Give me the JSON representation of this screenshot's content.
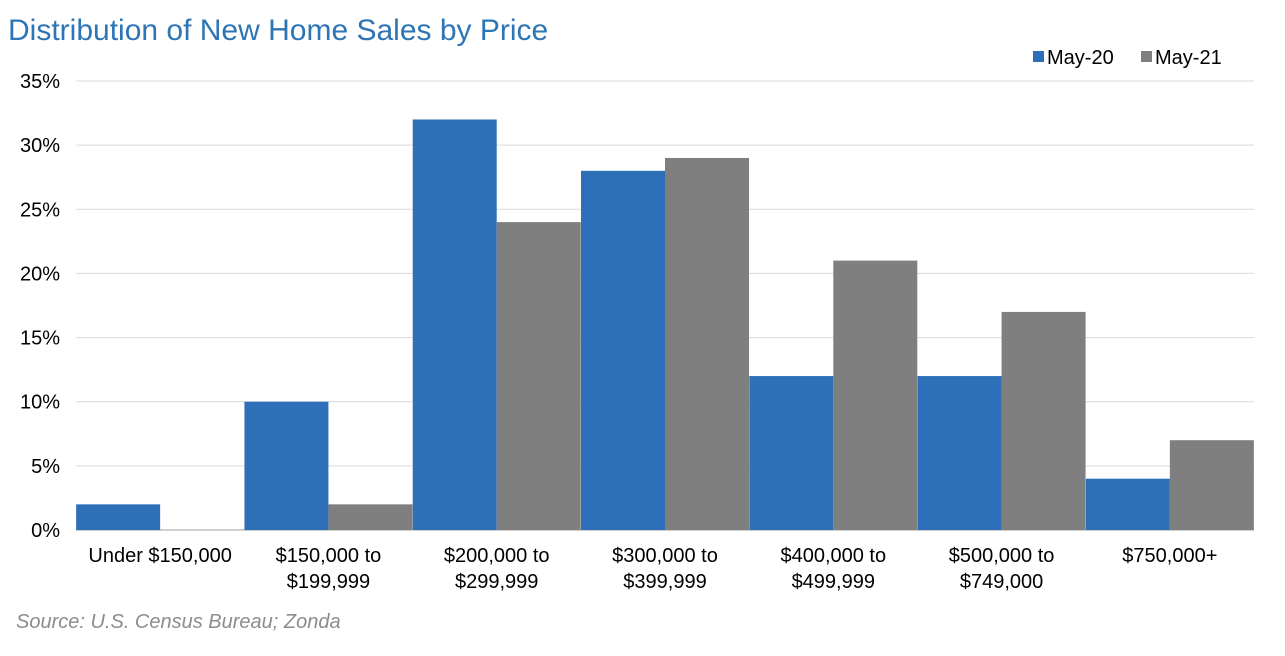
{
  "chart_data": {
    "type": "bar",
    "title": "Distribution of New Home Sales by Price",
    "categories": [
      [
        "Under $150,000"
      ],
      [
        "$150,000 to",
        "$199,999"
      ],
      [
        "$200,000 to",
        "$299,999"
      ],
      [
        "$300,000 to",
        "$399,999"
      ],
      [
        "$400,000 to",
        "$499,999"
      ],
      [
        "$500,000 to",
        "$749,000"
      ],
      [
        "$750,000+"
      ]
    ],
    "series": [
      {
        "name": "May-20",
        "values": [
          2,
          10,
          32,
          28,
          12,
          12,
          4
        ]
      },
      {
        "name": "May-21",
        "values": [
          0,
          2,
          24,
          29,
          21,
          17,
          7
        ]
      }
    ],
    "y_ticks": [
      "0%",
      "5%",
      "10%",
      "15%",
      "20%",
      "25%",
      "30%",
      "35%"
    ],
    "ylim": [
      0,
      35
    ],
    "y_unit": "%",
    "grid": true,
    "legend_position": "top-right",
    "source": "Source: U.S. Census Bureau; Zonda"
  },
  "colors": {
    "series": [
      "#2E70B8",
      "#7F7F7F"
    ],
    "title": "#2E75B6",
    "grid": "#D9D9D9",
    "axis": "#BFBFBF",
    "source": "#8C8C8C"
  }
}
